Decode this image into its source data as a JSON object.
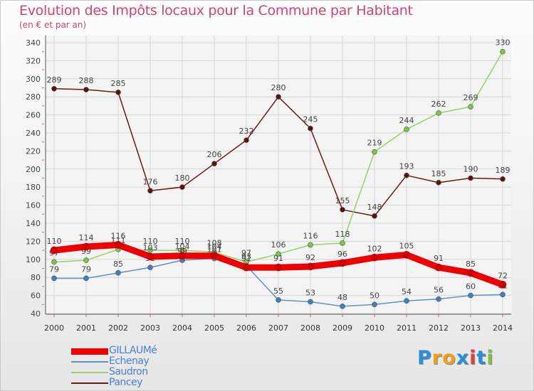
{
  "title": "Evolution des Impôts locaux pour la Commune par Habitant",
  "subtitle": "(en € et par an)",
  "logo": {
    "letters": [
      "P",
      "r",
      "o",
      "x",
      "i",
      "t",
      "i"
    ],
    "colors": [
      "#2a8fd8",
      "#f0a020",
      "#f0a020",
      "#2a8fd8",
      "#e04040",
      "#2a8fd8",
      "#80c040"
    ]
  },
  "chart_data": {
    "type": "line",
    "title": "Evolution des Impôts locaux pour la Commune par Habitant",
    "subtitle": "(en € et par an)",
    "xlabel": "",
    "ylabel": "",
    "ylim": [
      40,
      340
    ],
    "yticks": [
      40,
      60,
      80,
      100,
      120,
      140,
      160,
      180,
      200,
      220,
      240,
      260,
      280,
      300,
      320,
      340
    ],
    "grid": true,
    "legend_position": "bottom-left",
    "categories": [
      "2000",
      "2001",
      "2002",
      "2003",
      "2004",
      "2005",
      "2006",
      "2007",
      "2008",
      "2009",
      "2010",
      "2011",
      "2012",
      "2013",
      "2014"
    ],
    "series": [
      {
        "name": "Pancey",
        "color": "#6b1a1a",
        "dot": "#5a1212",
        "values": [
          289,
          288,
          285,
          176,
          180,
          206,
          232,
          280,
          245,
          155,
          148,
          193,
          185,
          190,
          189
        ]
      },
      {
        "name": "Saudron",
        "color": "#9ad06b",
        "dot": "#7cc44a",
        "values": [
          97,
          99,
          111,
          110,
          110,
          108,
          97,
          106,
          116,
          118,
          219,
          244,
          262,
          269,
          330
        ]
      },
      {
        "name": "Echenay",
        "color": "#5c93c9",
        "dot": "#3f7fbe",
        "values": [
          79,
          79,
          85,
          91,
          99,
          101,
          93,
          55,
          53,
          48,
          50,
          54,
          56,
          60,
          61
        ]
      },
      {
        "name": "GILLAUMé",
        "color": "#ee0000",
        "dot": "#cc0000",
        "values": [
          110,
          114,
          116,
          103,
          104,
          104,
          91,
          91,
          92,
          96,
          102,
          105,
          91,
          85,
          72
        ]
      }
    ],
    "legend": [
      "GILLAUMé",
      "Echenay",
      "Saudron",
      "Pancey"
    ]
  }
}
